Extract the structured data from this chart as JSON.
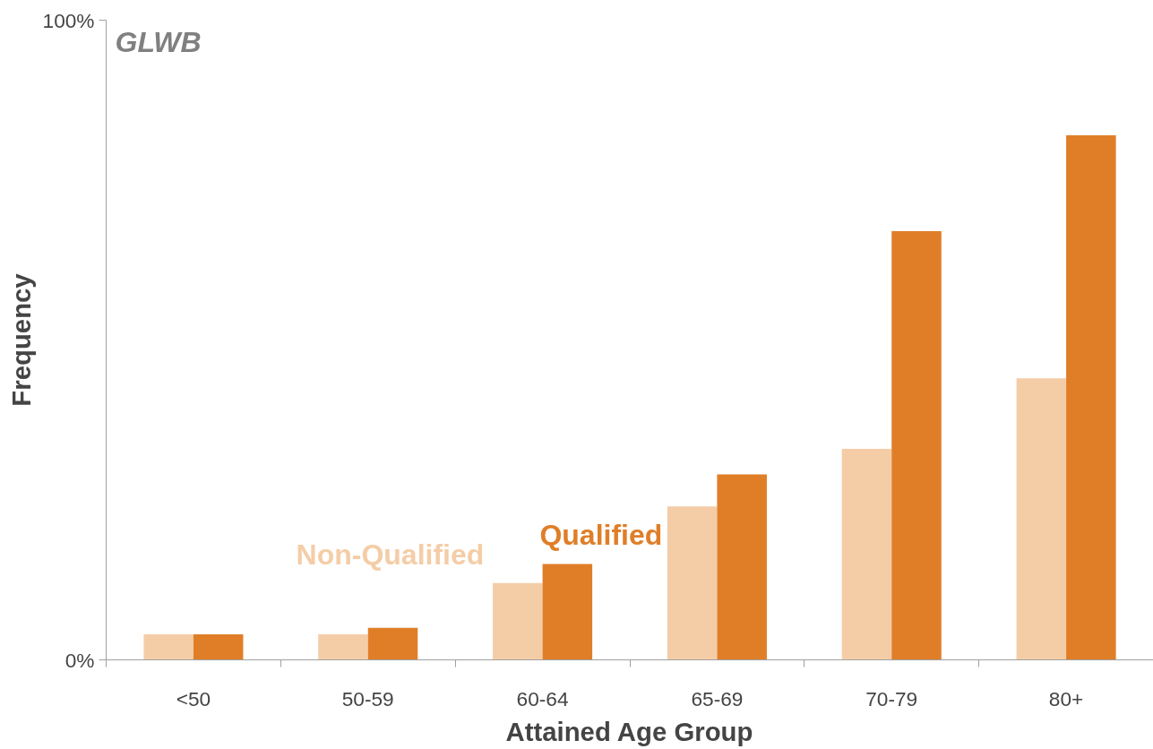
{
  "chart_data": {
    "type": "bar",
    "title": "GLWB",
    "xlabel": "Attained Age Group",
    "ylabel": "Frequency",
    "categories": [
      "<50",
      "50-59",
      "60-64",
      "65-69",
      "70-79",
      "80+"
    ],
    "series": [
      {
        "name": "Non-Qualified",
        "color": "#f4cda7",
        "values": [
          4,
          4,
          12,
          24,
          33,
          44
        ]
      },
      {
        "name": "Qualified",
        "color": "#e07e28",
        "values": [
          4,
          5,
          15,
          29,
          67,
          82
        ]
      }
    ],
    "ylim": [
      0,
      100
    ],
    "yticks": [
      {
        "value": 0,
        "label": "0%"
      },
      {
        "value": 100,
        "label": "100%"
      }
    ],
    "grid": false,
    "legend": false
  }
}
